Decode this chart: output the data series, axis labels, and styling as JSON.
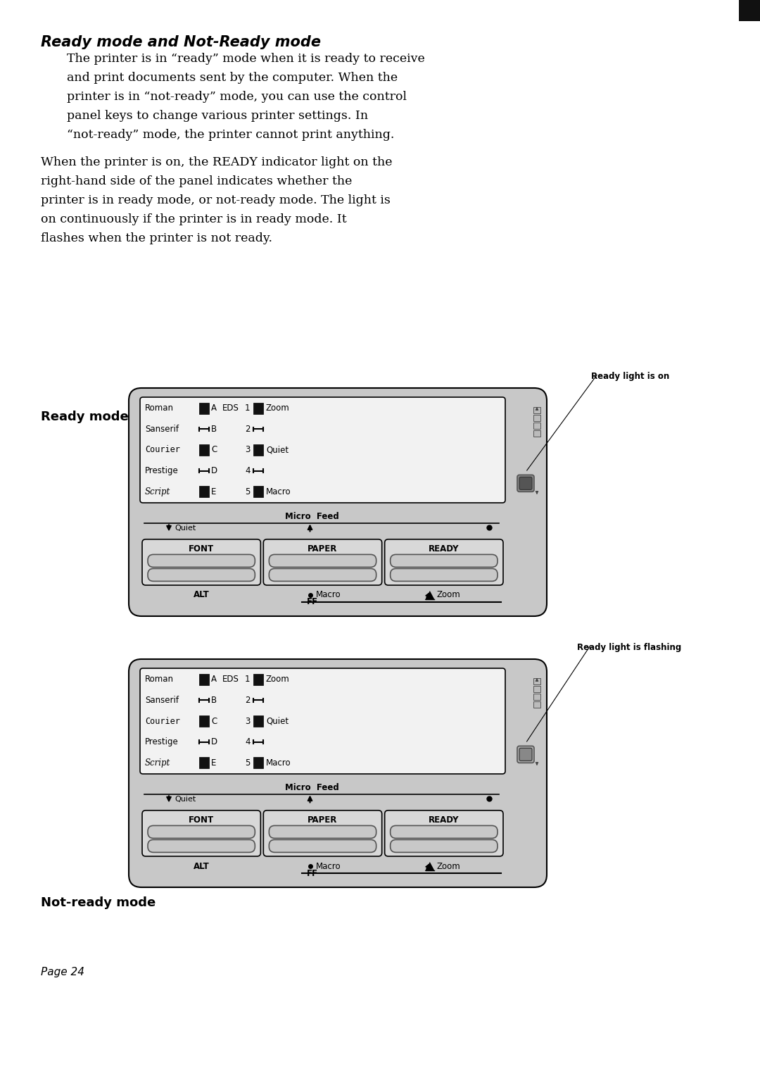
{
  "bg_color": "#ffffff",
  "title": "Ready mode and Not-Ready mode",
  "para1_lines": [
    "The printer is in “ready” mode when it is ready to receive",
    "and print documents sent by the computer. When the",
    "printer is in “not-ready” mode, you can use the control",
    "panel keys to change various printer settings. In",
    "“not-ready” mode, the printer cannot print anything."
  ],
  "para2_lines": [
    "When the printer is on, the READY indicator light on the",
    "right-hand side of the panel indicates whether the",
    "printer is in ready mode, or not-ready mode. The light is",
    "on continuously if the printer is in ready mode. It",
    "flashes when the printer is not ready."
  ],
  "label1": "Ready mode",
  "label2": "Not-ready mode",
  "annotation1": "Ready light is on",
  "annotation2": "Ready light is flashing",
  "page_label": "Page 24",
  "font_names": [
    "Roman",
    "Sanserif",
    "Courier",
    "Prestige",
    "Script"
  ],
  "sections": [
    "FONT",
    "PAPER",
    "READY"
  ]
}
